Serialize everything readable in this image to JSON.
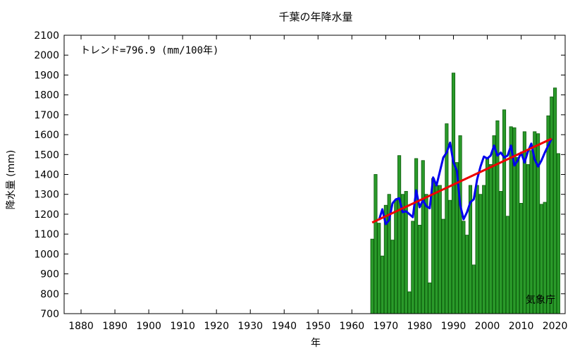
{
  "chart_data": {
    "type": "bar",
    "title": "千葉の年降水量",
    "xlabel": "年",
    "ylabel": "降水量 (mm)",
    "ylim": [
      700,
      2100
    ],
    "y_ticks": [
      700,
      800,
      900,
      1000,
      1100,
      1200,
      1300,
      1400,
      1500,
      1600,
      1700,
      1800,
      1900,
      2000,
      2100
    ],
    "xlim": [
      1875,
      2023
    ],
    "x_ticks": [
      1880,
      1890,
      1900,
      1910,
      1920,
      1930,
      1940,
      1950,
      1960,
      1970,
      1980,
      1990,
      2000,
      2010,
      2020
    ],
    "annotation": "トレンド=796.9 (mm/100年)",
    "credit": "気象庁",
    "grid": false,
    "colors": {
      "bars": "#2a9a2a",
      "bar_edge": "#0b5a0b",
      "moving_average": "#0000ee",
      "trend": "#ee0000"
    },
    "series": [
      {
        "type": "bar",
        "x": [
          1966,
          1967,
          1968,
          1969,
          1970,
          1971,
          1972,
          1973,
          1974,
          1975,
          1976,
          1977,
          1978,
          1979,
          1980,
          1981,
          1982,
          1983,
          1984,
          1985,
          1986,
          1987,
          1988,
          1989,
          1990,
          1991,
          1992,
          1993,
          1994,
          1995,
          1996,
          1997,
          1998,
          1999,
          2000,
          2001,
          2002,
          2003,
          2004,
          2005,
          2006,
          2007,
          2008,
          2009,
          2010,
          2011,
          2012,
          2013,
          2014,
          2015,
          2016,
          2017,
          2018,
          2019,
          2020,
          2021
        ],
        "values": [
          1075,
          1400,
          1155,
          990,
          1245,
          1300,
          1070,
          1270,
          1495,
          1300,
          1315,
          810,
          1165,
          1480,
          1145,
          1470,
          1300,
          855,
          1380,
          1345,
          1345,
          1175,
          1655,
          1270,
          1910,
          1460,
          1595,
          1165,
          1095,
          1345,
          945,
          1345,
          1300,
          1345,
          1480,
          1450,
          1595,
          1670,
          1315,
          1725,
          1190,
          1640,
          1635,
          1485,
          1255,
          1615,
          1450,
          1520,
          1615,
          1605,
          1250,
          1260,
          1695,
          1790,
          1835,
          1505
        ]
      },
      {
        "type": "line",
        "x": [
          1968,
          1969,
          1970,
          1971,
          1972,
          1973,
          1974,
          1975,
          1976,
          1977,
          1978,
          1979,
          1980,
          1981,
          1982,
          1983,
          1984,
          1985,
          1986,
          1987,
          1988,
          1989,
          1990,
          1991,
          1992,
          1993,
          1994,
          1995,
          1996,
          1997,
          1998,
          1999,
          2000,
          2001,
          2002,
          2003,
          2004,
          2005,
          2006,
          2007,
          2008,
          2009,
          2010,
          2011,
          2012,
          2013,
          2014,
          2015,
          2016,
          2017,
          2018,
          2019
        ],
        "values": [
          1170,
          1225,
          1150,
          1170,
          1255,
          1275,
          1280,
          1210,
          1215,
          1200,
          1185,
          1320,
          1235,
          1270,
          1240,
          1230,
          1385,
          1345,
          1415,
          1485,
          1510,
          1560,
          1460,
          1420,
          1245,
          1175,
          1210,
          1260,
          1275,
          1375,
          1440,
          1490,
          1480,
          1495,
          1545,
          1495,
          1510,
          1485,
          1495,
          1545,
          1445,
          1470,
          1510,
          1460,
          1515,
          1555,
          1475,
          1440,
          1470,
          1510,
          1545,
          1580
        ]
      },
      {
        "type": "trend",
        "x": [
          1966,
          2019
        ],
        "values": [
          1158,
          1580
        ]
      }
    ]
  }
}
